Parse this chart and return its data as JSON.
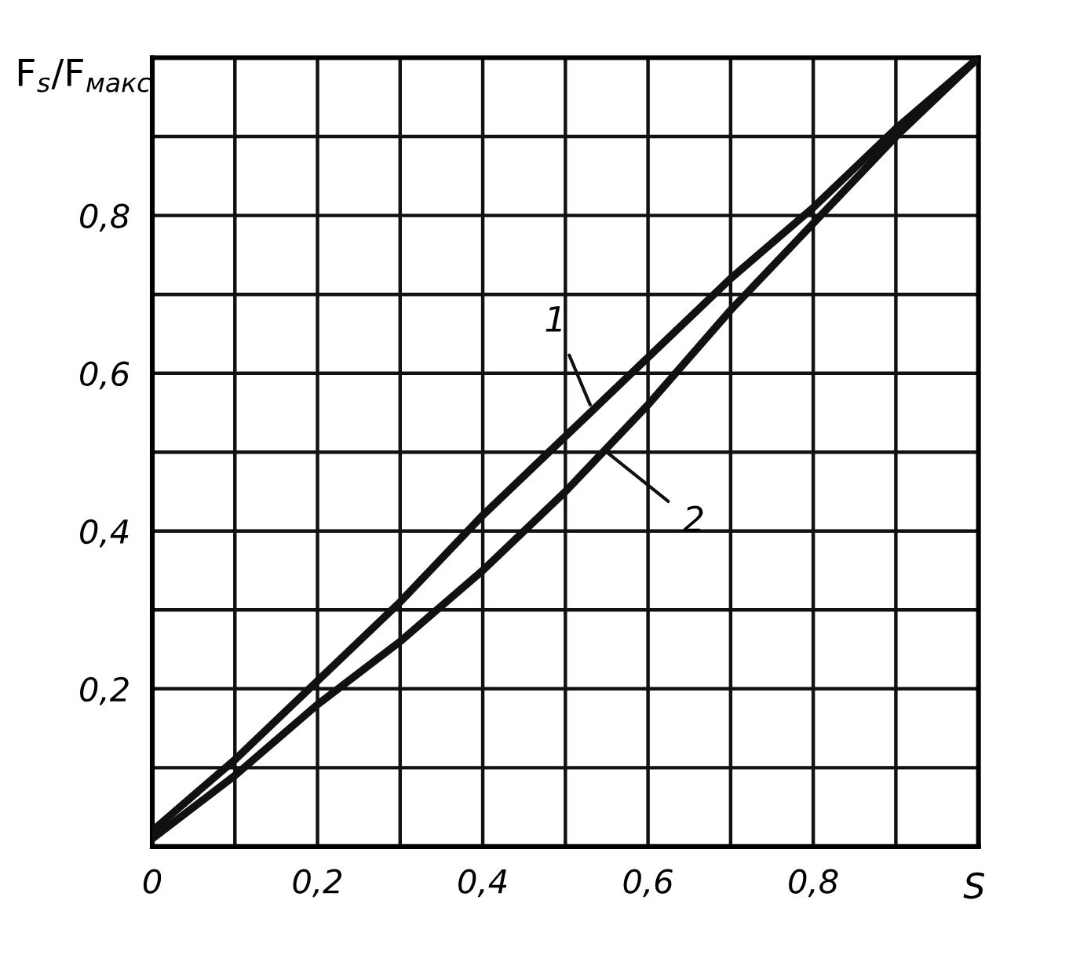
{
  "chart_data": {
    "type": "line",
    "xlabel": "S",
    "ylabel": "F$_{s}$/F$_{макс}$",
    "x": [
      0,
      0.1,
      0.2,
      0.3,
      0.4,
      0.5,
      0.6,
      0.7,
      0.8,
      0.9,
      1.0
    ],
    "series": [
      {
        "color": "#111111",
        "values": [
          0.02,
          0.11,
          0.21,
          0.31,
          0.42,
          0.52,
          0.62,
          0.72,
          0.81,
          0.91,
          1.0
        ]
      },
      {
        "color": "#111111",
        "values": [
          0.01,
          0.09,
          0.18,
          0.26,
          0.35,
          0.45,
          0.56,
          0.68,
          0.79,
          0.9,
          1.0
        ]
      }
    ],
    "annotations": [
      {
        "text": "1",
        "x": 0.53,
        "y": 0.56
      },
      {
        "text": "2",
        "x": 0.55,
        "y": 0.5
      }
    ],
    "xlim": [
      0,
      1
    ],
    "ylim": [
      0,
      1
    ],
    "xticks": [
      {
        "value": 0,
        "label": "0"
      },
      {
        "value": 0.1,
        "label": null
      },
      {
        "value": 0.2,
        "label": "0,2"
      },
      {
        "value": 0.3,
        "label": null
      },
      {
        "value": 0.4,
        "label": "0,4"
      },
      {
        "value": 0.5,
        "label": null
      },
      {
        "value": 0.6,
        "label": "0,6"
      },
      {
        "value": 0.7,
        "label": null
      },
      {
        "value": 0.8,
        "label": "0,8"
      },
      {
        "value": 0.9,
        "label": null
      },
      {
        "value": 1.0,
        "label": null
      }
    ],
    "yticks": [
      {
        "value": 0,
        "label": null
      },
      {
        "value": 0.1,
        "label": null
      },
      {
        "value": 0.2,
        "label": "0,2"
      },
      {
        "value": 0.3,
        "label": null
      },
      {
        "value": 0.4,
        "label": "0,4"
      },
      {
        "value": 0.5,
        "label": null
      },
      {
        "value": 0.6,
        "label": "0,6"
      },
      {
        "value": 0.7,
        "label": null
      },
      {
        "value": 0.8,
        "label": "0,8"
      },
      {
        "value": 0.9,
        "label": null
      },
      {
        "value": 1.0,
        "label": null
      }
    ],
    "grid": true,
    "marker": "none",
    "line_style": "solid"
  }
}
